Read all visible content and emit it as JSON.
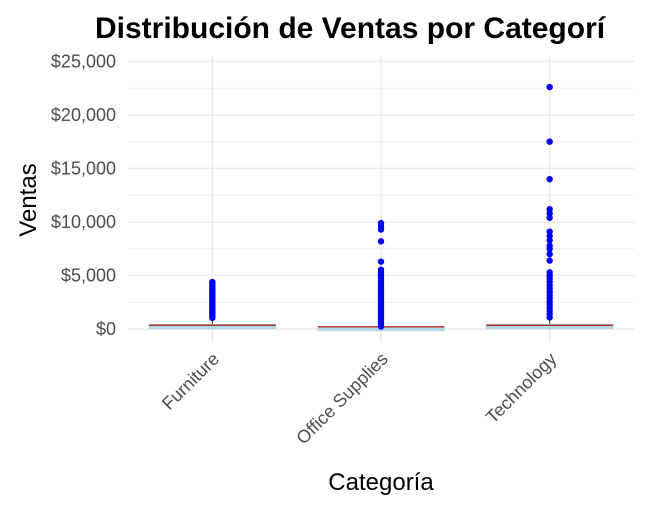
{
  "chart_data": {
    "type": "boxplot",
    "title": "Distribución de Ventas por Categorí",
    "xlabel": "Categoría",
    "ylabel": "Ventas",
    "ylim": [
      -1200,
      25500
    ],
    "yticks": [
      0,
      5000,
      10000,
      15000,
      20000,
      25000
    ],
    "ytick_labels": [
      "$0",
      "$5,000",
      "$10,000",
      "$15,000",
      "$20,000",
      "$25,000"
    ],
    "grid": true,
    "legend": "none",
    "categories": [
      "Furniture",
      "Office Supplies",
      "Technology"
    ],
    "boxes": [
      {
        "category": "Furniture",
        "q1": 48,
        "median": 182,
        "q3": 435,
        "lower_whisker": 1,
        "upper_whisker": 1010
      },
      {
        "category": "Office Supplies",
        "q1": 8,
        "median": 27,
        "q3": 90,
        "lower_whisker": 0,
        "upper_whisker": 210
      },
      {
        "category": "Technology",
        "q1": 65,
        "median": 168,
        "q3": 450,
        "lower_whisker": 1,
        "upper_whisker": 1030
      }
    ],
    "outliers": [
      {
        "category": "Furniture",
        "values": [
          1050,
          1200,
          1400,
          1550,
          1700,
          1850,
          2000,
          2150,
          2300,
          2450,
          2600,
          2750,
          2900,
          3050,
          3200,
          3350,
          3500,
          3650,
          3800,
          3950,
          4100,
          4250,
          4400
        ]
      },
      {
        "category": "Office Supplies",
        "values": [
          250,
          450,
          650,
          850,
          1050,
          1250,
          1450,
          1650,
          1850,
          2050,
          2250,
          2450,
          2650,
          2850,
          3050,
          3250,
          3450,
          3650,
          3850,
          4050,
          4300,
          4550,
          4800,
          5050,
          5300,
          5550,
          6300,
          8200,
          9300,
          9600,
          9900
        ]
      },
      {
        "category": "Technology",
        "values": [
          1100,
          1400,
          1700,
          2000,
          2300,
          2600,
          2900,
          3200,
          3500,
          3800,
          4100,
          4400,
          4700,
          5000,
          5300,
          6400,
          7000,
          7500,
          7800,
          8300,
          8700,
          9100,
          10400,
          10800,
          11200,
          14000,
          17500,
          22600
        ]
      }
    ],
    "colors": {
      "box_fill": "#add8e6",
      "median_line": "#b22222",
      "outlier": "#0000ff",
      "grid": "#ebebeb"
    }
  }
}
